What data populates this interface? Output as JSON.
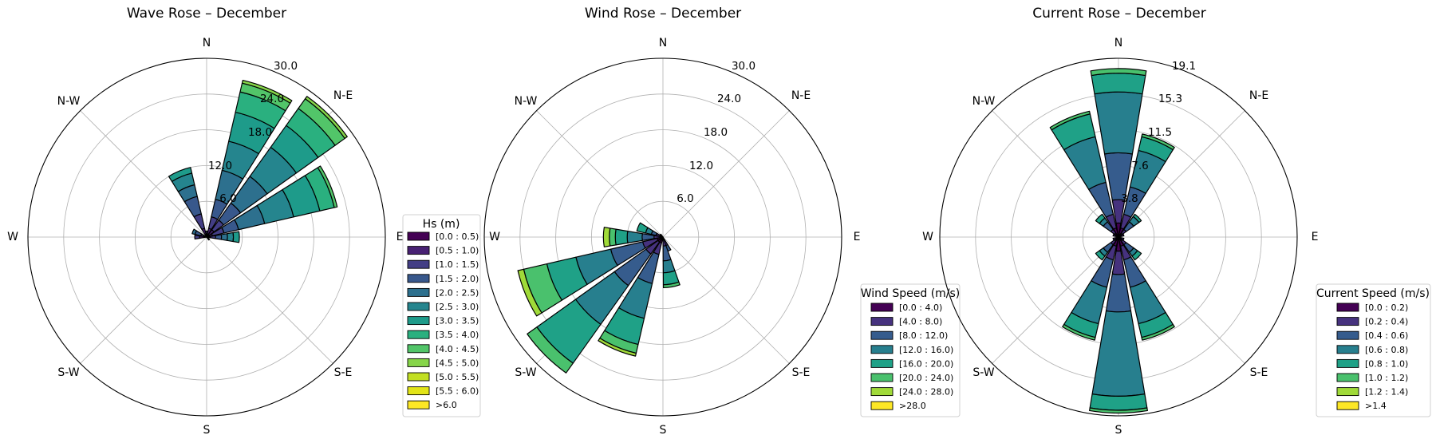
{
  "figure": {
    "panels": 3
  },
  "chart_data": [
    {
      "type": "windrose",
      "title": "Wave Rose – December",
      "directions": [
        "N",
        "N-E",
        "E",
        "S-E",
        "S",
        "S-W",
        "W",
        "N-W"
      ],
      "sector_angles_deg": [
        0,
        22.5,
        45,
        67.5,
        90,
        112.5,
        135,
        157.5,
        180,
        202.5,
        225,
        247.5,
        270,
        292.5,
        315,
        337.5
      ],
      "radial_ticks": [
        "6.0",
        "12.0",
        "18.0",
        "24.0",
        "30.0"
      ],
      "rmax": 30,
      "legend": {
        "title": "Hs (m)",
        "placement": "right",
        "bins": [
          "[0.0 : 0.5)",
          "[0.5 : 1.0)",
          "[1.0 : 1.5)",
          "[1.5 : 2.0)",
          "[2.0 : 2.5)",
          "[2.5 : 3.0)",
          "[3.0 : 3.5)",
          "[3.5 : 4.0)",
          "[4.0 : 4.5)",
          "[4.5 : 5.0)",
          "[5.0 : 5.5)",
          "[5.5 : 6.0)",
          ">6.0"
        ],
        "colors": [
          "#440154",
          "#482173",
          "#433e85",
          "#38588c",
          "#2d708e",
          "#25858e",
          "#1e9b8a",
          "#2ab07f",
          "#52c569",
          "#86d549",
          "#c2df23",
          "#e2e418",
          "#fde725"
        ]
      },
      "sectors": [
        {
          "angle": 0,
          "cum": [
            0.3,
            0.6,
            1.0
          ]
        },
        {
          "angle": 22.5,
          "cum": [
            0.5,
            1.5,
            3.5,
            6.5,
            11.5,
            16.5,
            21.5,
            25.0,
            26.5,
            27.0
          ]
        },
        {
          "angle": 45,
          "cum": [
            0.5,
            1.5,
            3.5,
            7.0,
            12.5,
            18.5,
            23.0,
            26.5,
            28.5,
            29.0
          ]
        },
        {
          "angle": 67.5,
          "cum": [
            0.5,
            1.0,
            3.0,
            5.5,
            10.0,
            15.0,
            19.5,
            22.0,
            22.5
          ]
        },
        {
          "angle": 90,
          "cum": [
            0.2,
            0.6,
            1.5,
            2.5,
            3.5,
            4.5,
            5.5
          ]
        },
        {
          "angle": 135,
          "cum": [
            0.3,
            0.6
          ]
        },
        {
          "angle": 270,
          "cum": [
            0.5,
            1.2,
            2.0
          ]
        },
        {
          "angle": 292.5,
          "cum": [
            0.2,
            0.5,
            1.0,
            2.0,
            2.5
          ]
        },
        {
          "angle": 337.5,
          "cum": [
            0.5,
            1.5,
            4.0,
            7.0,
            9.0,
            11.0,
            12.0
          ]
        }
      ]
    },
    {
      "type": "windrose",
      "title": "Wind Rose – December",
      "directions": [
        "N",
        "N-E",
        "E",
        "S-E",
        "S",
        "S-W",
        "W",
        "N-W"
      ],
      "radial_ticks": [
        "6.0",
        "12.0",
        "18.0",
        "24.0",
        "30.0"
      ],
      "rmax": 30,
      "legend": {
        "title": "Wind Speed (m/s)",
        "placement": "right",
        "bins": [
          "[0.0 : 4.0)",
          "[4.0 : 8.0)",
          "[8.0 : 12.0)",
          "[12.0 : 16.0)",
          "[16.0 : 20.0)",
          "[20.0 : 24.0)",
          "[24.0 : 28.0)",
          ">28.0"
        ],
        "colors": [
          "#440154",
          "#46327e",
          "#365c8d",
          "#277f8e",
          "#1fa187",
          "#4ac16d",
          "#a0da39",
          "#fde725"
        ]
      },
      "sectors": [
        {
          "angle": 157.5,
          "cum": [
            0.5,
            1.5,
            2.5
          ]
        },
        {
          "angle": 170,
          "cum": [
            0.5,
            1.5,
            4.0,
            6.0,
            8.0,
            8.5
          ]
        },
        {
          "angle": 202.5,
          "cum": [
            1.0,
            3.0,
            8.0,
            14.0,
            18.5,
            20.0,
            20.5
          ]
        },
        {
          "angle": 225,
          "cum": [
            1.0,
            3.5,
            10.0,
            18.0,
            26.0,
            28.0
          ]
        },
        {
          "angle": 247.5,
          "cum": [
            1.0,
            3.5,
            9.0,
            15.0,
            20.0,
            24.0,
            25.0
          ]
        },
        {
          "angle": 270,
          "cum": [
            0.5,
            1.5,
            3.5,
            6.0,
            8.0,
            9.0,
            10.0
          ]
        },
        {
          "angle": 292.5,
          "cum": [
            0.5,
            1.2,
            2.0,
            3.0,
            4.5
          ]
        },
        {
          "angle": 315,
          "cum": [
            0.3,
            0.6
          ]
        }
      ]
    },
    {
      "type": "windrose",
      "title": "Current Rose – December",
      "directions": [
        "N",
        "N-E",
        "E",
        "S-E",
        "S",
        "S-W",
        "W",
        "N-W"
      ],
      "radial_ticks": [
        "3.8",
        "7.6",
        "11.5",
        "15.3",
        "19.1"
      ],
      "rmax": 19.1,
      "legend": {
        "title": "Current Speed (m/s)",
        "placement": "right",
        "bins": [
          "[0.0 : 0.2)",
          "[0.2 : 0.4)",
          "[0.4 : 0.6)",
          "[0.6 : 0.8)",
          "[0.8 : 1.0)",
          "[1.0 : 1.2)",
          "[1.2 : 1.4)",
          ">1.4"
        ],
        "colors": [
          "#440154",
          "#46327e",
          "#365c8d",
          "#277f8e",
          "#1fa187",
          "#4ac16d",
          "#a0da39",
          "#fde725"
        ]
      },
      "sectors": [
        {
          "angle": 0,
          "cum": [
            1.5,
            4.0,
            9.0,
            15.5,
            17.5,
            18.0
          ]
        },
        {
          "angle": 22.5,
          "cum": [
            1.0,
            2.5,
            5.5,
            9.5,
            11.0,
            11.3
          ]
        },
        {
          "angle": 45,
          "cum": [
            0.5,
            1.0,
            2.0,
            2.7,
            3.0
          ]
        },
        {
          "angle": 67.5,
          "cum": [
            0.3,
            0.6
          ]
        },
        {
          "angle": 112.5,
          "cum": [
            0.3,
            0.6
          ]
        },
        {
          "angle": 135,
          "cum": [
            0.5,
            1.0,
            2.0,
            2.5,
            3.0
          ]
        },
        {
          "angle": 157.5,
          "cum": [
            1.0,
            2.5,
            5.5,
            9.5,
            11.0,
            11.3
          ]
        },
        {
          "angle": 180,
          "cum": [
            1.5,
            4.0,
            8.0,
            17.0,
            18.5,
            18.8
          ]
        },
        {
          "angle": 202.5,
          "cum": [
            1.0,
            2.5,
            5.5,
            9.5,
            11.0,
            11.3
          ]
        },
        {
          "angle": 225,
          "cum": [
            0.5,
            1.0,
            2.0,
            2.5,
            3.0
          ]
        },
        {
          "angle": 247.5,
          "cum": [
            0.3,
            0.6
          ]
        },
        {
          "angle": 292.5,
          "cum": [
            0.3,
            0.6
          ]
        },
        {
          "angle": 315,
          "cum": [
            0.5,
            1.0,
            2.0,
            2.5,
            3.0
          ]
        },
        {
          "angle": 337.5,
          "cum": [
            1.0,
            2.5,
            6.0,
            11.0,
            13.5,
            13.8
          ]
        }
      ]
    }
  ]
}
